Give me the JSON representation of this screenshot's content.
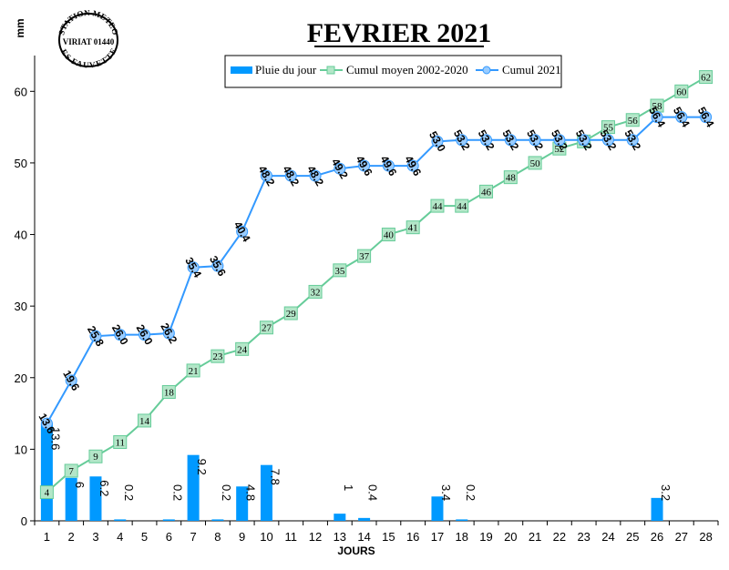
{
  "chart_data": {
    "type": "bar+line",
    "title": "FEVRIER 2021",
    "ylabel": "mm",
    "xlabel": "JOURS",
    "ylim": [
      0,
      65
    ],
    "yticks": [
      0,
      10,
      20,
      30,
      40,
      50,
      60
    ],
    "categories": [
      "1",
      "2",
      "3",
      "4",
      "5",
      "6",
      "7",
      "8",
      "9",
      "10",
      "11",
      "12",
      "13",
      "14",
      "15",
      "16",
      "17",
      "18",
      "19",
      "20",
      "21",
      "22",
      "23",
      "24",
      "25",
      "26",
      "27",
      "28"
    ],
    "legend_position": "top",
    "grid": false,
    "series": [
      {
        "name": "Pluie du jour",
        "kind": "bar",
        "color": "#0099ff",
        "values": [
          13.6,
          6,
          6.2,
          0.2,
          0,
          0.2,
          9.2,
          0.2,
          4.8,
          7.8,
          0,
          0,
          1,
          0.4,
          0,
          0,
          3.4,
          0.2,
          0,
          0,
          0,
          0,
          0,
          0,
          0,
          3.2,
          0,
          0
        ],
        "labels": [
          "13.6",
          "6",
          "6.2",
          "0.2",
          "",
          "0.2",
          "9.2",
          "0.2",
          "4.8",
          "7.8",
          "",
          "",
          "1",
          "0.4",
          "",
          "",
          "3.4",
          "0.2",
          "",
          "",
          "",
          "",
          "",
          "",
          "",
          "3.2",
          "",
          ""
        ]
      },
      {
        "name": "Cumul moyen 2002-2020",
        "kind": "line",
        "color": "#66cc99",
        "marker_fill": "#b3e6c8",
        "values": [
          4,
          7,
          9,
          11,
          14,
          18,
          21,
          23,
          24,
          27,
          29,
          32,
          35,
          37,
          40,
          41,
          44,
          44,
          46,
          48,
          50,
          52,
          53,
          55,
          56,
          58,
          60,
          62
        ],
        "labels": [
          "4",
          "7",
          "9",
          "11",
          "14",
          "18",
          "21",
          "23",
          "24",
          "27",
          "29",
          "32",
          "35",
          "37",
          "40",
          "41",
          "44",
          "44",
          "46",
          "48",
          "50",
          "52",
          "53",
          "55",
          "56",
          "58",
          "60",
          "62"
        ]
      },
      {
        "name": "Cumul 2021",
        "kind": "line",
        "color": "#3399ff",
        "marker_fill": "#99ccff",
        "values": [
          13.6,
          19.6,
          25.8,
          26.0,
          26.0,
          26.2,
          35.4,
          35.6,
          40.4,
          48.2,
          48.2,
          48.2,
          49.2,
          49.6,
          49.6,
          49.6,
          53.0,
          53.2,
          53.2,
          53.2,
          53.2,
          53.2,
          53.2,
          53.2,
          53.2,
          56.4,
          56.4,
          56.4
        ],
        "labels": [
          "13.6",
          "19.6",
          "25.8",
          "26.0",
          "26.0",
          "26.2",
          "35.4",
          "35.6",
          "40.4",
          "48.2",
          "48.2",
          "48.2",
          "49.2",
          "49.6",
          "49.6",
          "49.6",
          "53.0",
          "53.2",
          "53.2",
          "53.2",
          "53.2",
          "53.2",
          "53.2",
          "53.2",
          "53.2",
          "56.4",
          "56.4",
          "56.4"
        ]
      }
    ]
  },
  "stamp": {
    "line1": "STATION METEO",
    "line2": "VIRIAT 01440",
    "line3": "LES FAUVETTES"
  }
}
